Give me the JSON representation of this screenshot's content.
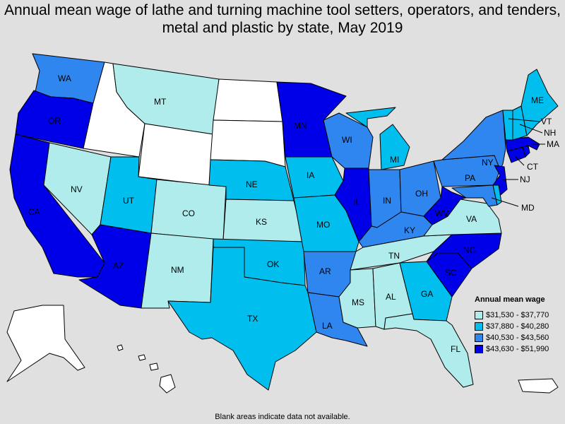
{
  "title": "Annual mean wage of lathe and turning machine tool setters, operators, and tenders, metal and plastic by state, May 2019",
  "legend": {
    "title": "Annual mean wage",
    "items": [
      {
        "range": "$31,530 - $37,770",
        "color": "#b0ecec"
      },
      {
        "range": "$37,880 - $40,280",
        "color": "#00bfef"
      },
      {
        "range": "$40,530 - $43,560",
        "color": "#2f86ef"
      },
      {
        "range": "$43,630 - $51,990",
        "color": "#0000e8"
      }
    ]
  },
  "no_data_color": "#ffffff",
  "footnote": "Blank areas indicate data not available.",
  "states": {
    "WA": {
      "tier": 3
    },
    "OR": {
      "tier": 4
    },
    "CA": {
      "tier": 4
    },
    "ID": {
      "tier": 0
    },
    "NV": {
      "tier": 1
    },
    "MT": {
      "tier": 1
    },
    "WY": {
      "tier": 0
    },
    "UT": {
      "tier": 2
    },
    "AZ": {
      "tier": 4
    },
    "CO": {
      "tier": 1
    },
    "NM": {
      "tier": 1
    },
    "ND": {
      "tier": 0
    },
    "SD": {
      "tier": 0
    },
    "NE": {
      "tier": 2
    },
    "KS": {
      "tier": 1
    },
    "OK": {
      "tier": 2
    },
    "TX": {
      "tier": 2
    },
    "MN": {
      "tier": 4
    },
    "IA": {
      "tier": 2
    },
    "MO": {
      "tier": 2
    },
    "AR": {
      "tier": 3
    },
    "LA": {
      "tier": 3
    },
    "WI": {
      "tier": 3
    },
    "IL": {
      "tier": 4
    },
    "MI": {
      "tier": 2
    },
    "IN": {
      "tier": 3
    },
    "OH": {
      "tier": 3
    },
    "KY": {
      "tier": 3
    },
    "TN": {
      "tier": 1
    },
    "MS": {
      "tier": 1
    },
    "AL": {
      "tier": 1
    },
    "GA": {
      "tier": 2
    },
    "FL": {
      "tier": 1
    },
    "SC": {
      "tier": 4
    },
    "NC": {
      "tier": 4
    },
    "VA": {
      "tier": 1
    },
    "WV": {
      "tier": 4
    },
    "PA": {
      "tier": 3
    },
    "NY": {
      "tier": 3
    },
    "NJ": {
      "tier": 4
    },
    "MD": {
      "tier": 3
    },
    "DE": {
      "tier": 2
    },
    "CT": {
      "tier": 4
    },
    "RI": {
      "tier": 4
    },
    "MA": {
      "tier": 4
    },
    "VT": {
      "tier": 2
    },
    "NH": {
      "tier": 2
    },
    "ME": {
      "tier": 2
    },
    "AK": {
      "tier": 0
    },
    "HI": {
      "tier": 0
    },
    "PR": {
      "tier": 0
    }
  },
  "labels": [
    "WA",
    "OR",
    "CA",
    "NV",
    "MT",
    "UT",
    "AZ",
    "CO",
    "NM",
    "NE",
    "KS",
    "OK",
    "TX",
    "MN",
    "IA",
    "MO",
    "AR",
    "LA",
    "WI",
    "IL",
    "MI",
    "IN",
    "OH",
    "KY",
    "TN",
    "MS",
    "AL",
    "GA",
    "FL",
    "SC",
    "NC",
    "VA",
    "WV",
    "PA",
    "NY",
    "NJ",
    "MD",
    "CT",
    "MA",
    "VT",
    "NH",
    "ME"
  ]
}
